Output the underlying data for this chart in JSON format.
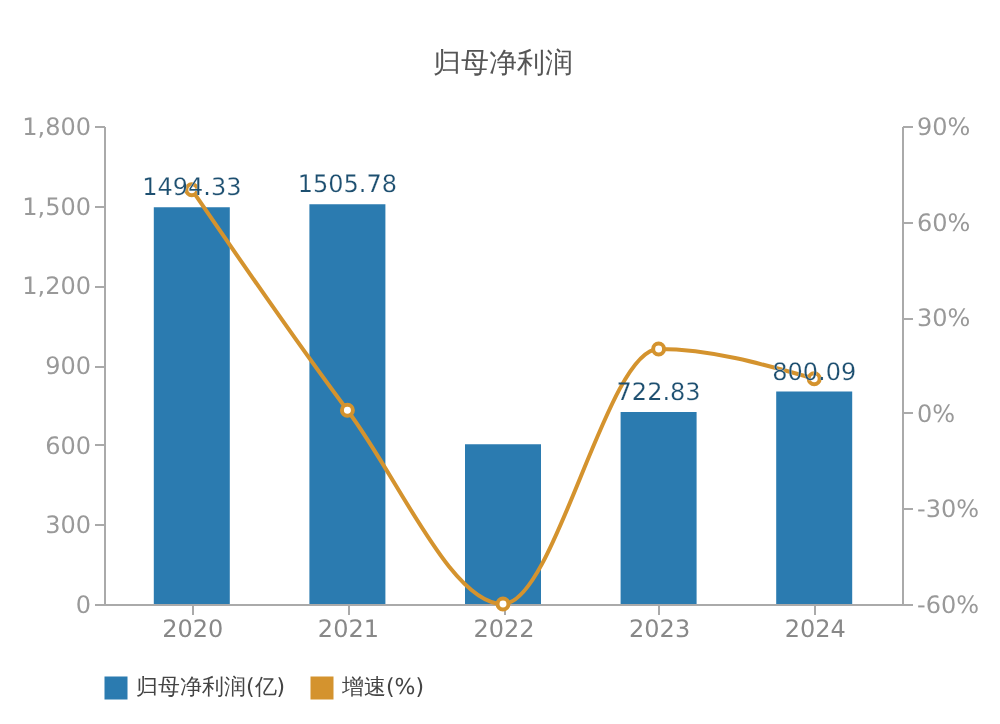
{
  "chart_data": {
    "type": "bar",
    "title": "归母净利润",
    "categories": [
      "2020",
      "2021",
      "2022",
      "2023",
      "2024"
    ],
    "series": [
      {
        "name": "归母净利润(亿)",
        "color": "#2b7bb0",
        "values": [
          1494.33,
          1505.78,
          602,
          722.83,
          800.09
        ],
        "value_labels": [
          "1494.33",
          "1505.78",
          null,
          "722.83",
          "800.09"
        ]
      },
      {
        "name": "增速(%)",
        "type": "line",
        "axis": "y2",
        "color": "#d4932e",
        "marker": "circle",
        "values": [
          70,
          0.8,
          -60,
          20,
          10.7
        ]
      }
    ],
    "ylim": [
      0,
      1800
    ],
    "yticks": [
      0,
      300,
      600,
      900,
      {
        "value": 1200,
        "label": "1,200"
      },
      {
        "value": 1500,
        "label": "1,500"
      },
      {
        "value": 1800,
        "label": "1,800"
      }
    ],
    "y2lim": [
      -60,
      90
    ],
    "y2ticks": [
      {
        "value": -60,
        "label": "-60%"
      },
      {
        "value": -30,
        "label": "-30%"
      },
      {
        "value": 0,
        "label": "0%"
      },
      {
        "value": 30,
        "label": "30%"
      },
      {
        "value": 60,
        "label": "60%"
      },
      {
        "value": 90,
        "label": "90%"
      }
    ],
    "grid": false,
    "legend": "bottom"
  }
}
